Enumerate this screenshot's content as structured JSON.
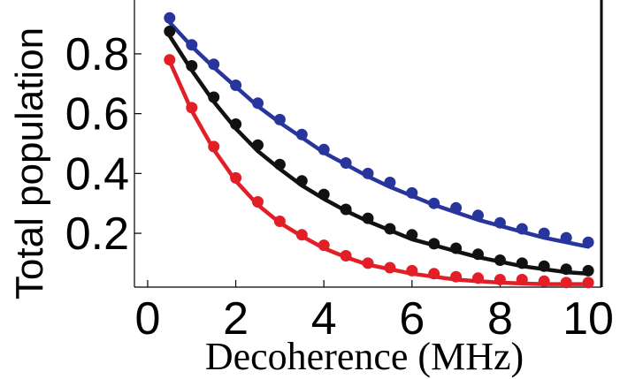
{
  "chart_data": {
    "type": "line",
    "title": "",
    "xlabel": "Decoherence (MHz)",
    "ylabel": "Total population",
    "xlim": [
      -0.3,
      10.3
    ],
    "ylim": [
      0.02,
      0.98
    ],
    "x_ticks": [
      "0",
      "2",
      "4",
      "6",
      "8",
      "10"
    ],
    "y_ticks": [
      "0.2",
      "0.4",
      "0.6",
      "0.8"
    ],
    "legend": "none",
    "grid": false,
    "x": [
      0.5,
      1.0,
      1.5,
      2.0,
      2.5,
      3.0,
      3.5,
      4.0,
      4.5,
      5.0,
      5.5,
      6.0,
      6.5,
      7.0,
      7.5,
      8.0,
      8.5,
      9.0,
      9.5,
      10.0
    ],
    "series": [
      {
        "color": "#27359c",
        "markers": [
          0.92,
          0.83,
          0.765,
          0.695,
          0.635,
          0.58,
          0.53,
          0.48,
          0.435,
          0.4,
          0.37,
          0.335,
          0.3,
          0.285,
          0.26,
          0.235,
          0.215,
          0.2,
          0.185,
          0.17
        ],
        "curve": [
          0.905,
          0.825,
          0.755,
          0.69,
          0.625,
          0.57,
          0.52,
          0.47,
          0.43,
          0.39,
          0.355,
          0.325,
          0.295,
          0.27,
          0.245,
          0.225,
          0.205,
          0.185,
          0.17,
          0.155
        ]
      },
      {
        "color": "#111111",
        "markers": [
          0.875,
          0.76,
          0.655,
          0.565,
          0.495,
          0.43,
          0.375,
          0.33,
          0.28,
          0.25,
          0.215,
          0.195,
          0.165,
          0.15,
          0.13,
          0.11,
          0.1,
          0.09,
          0.08,
          0.075
        ],
        "curve": [
          0.86,
          0.745,
          0.64,
          0.55,
          0.475,
          0.415,
          0.36,
          0.315,
          0.275,
          0.24,
          0.21,
          0.18,
          0.16,
          0.14,
          0.12,
          0.105,
          0.09,
          0.08,
          0.07,
          0.065
        ]
      },
      {
        "color": "#e21e26",
        "markers": [
          0.78,
          0.62,
          0.49,
          0.385,
          0.305,
          0.24,
          0.195,
          0.16,
          0.125,
          0.1,
          0.085,
          0.075,
          0.065,
          0.055,
          0.05,
          0.045,
          0.045,
          0.04,
          0.035,
          0.035
        ],
        "curve": [
          0.775,
          0.61,
          0.48,
          0.375,
          0.295,
          0.235,
          0.19,
          0.15,
          0.12,
          0.095,
          0.08,
          0.065,
          0.055,
          0.045,
          0.04,
          0.035,
          0.032,
          0.03,
          0.03,
          0.03
        ]
      }
    ]
  }
}
